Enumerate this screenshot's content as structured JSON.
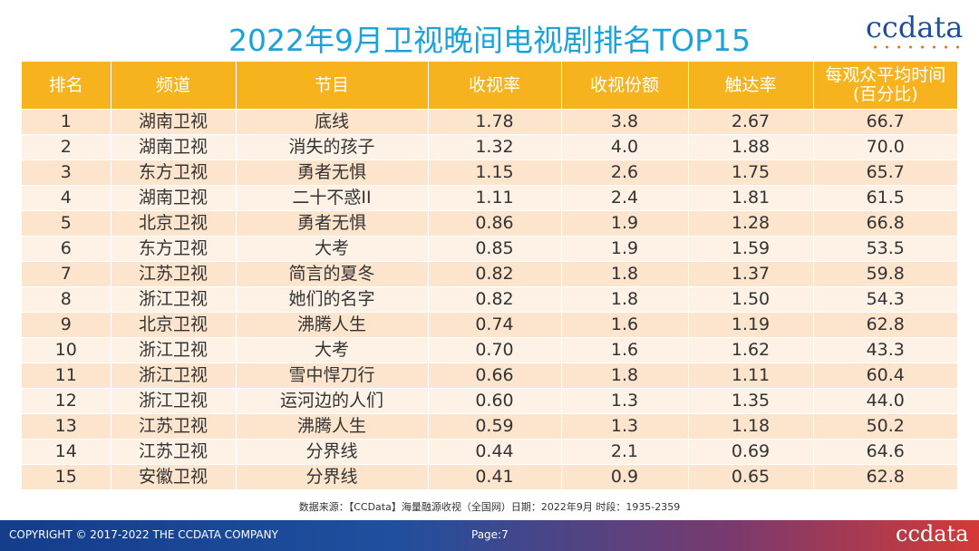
{
  "title": "2022年9月卫视晚间电视剧排名TOP15",
  "logo": "ccdata",
  "headers": [
    "排名",
    "频道",
    "节目",
    "收视率",
    "收视份额",
    "触达率",
    "每观众平均时间\n(百分比)"
  ],
  "rows": [
    [
      "1",
      "湖南卫视",
      "底线",
      "1.78",
      "3.8",
      "2.67",
      "66.7"
    ],
    [
      "2",
      "湖南卫视",
      "消失的孩子",
      "1.32",
      "4.0",
      "1.88",
      "70.0"
    ],
    [
      "3",
      "东方卫视",
      "勇者无惧",
      "1.15",
      "2.6",
      "1.75",
      "65.7"
    ],
    [
      "4",
      "湖南卫视",
      "二十不惑II",
      "1.11",
      "2.4",
      "1.81",
      "61.5"
    ],
    [
      "5",
      "北京卫视",
      "勇者无惧",
      "0.86",
      "1.9",
      "1.28",
      "66.8"
    ],
    [
      "6",
      "东方卫视",
      "大考",
      "0.85",
      "1.9",
      "1.59",
      "53.5"
    ],
    [
      "7",
      "江苏卫视",
      "简言的夏冬",
      "0.82",
      "1.8",
      "1.37",
      "59.8"
    ],
    [
      "8",
      "浙江卫视",
      "她们的名字",
      "0.82",
      "1.8",
      "1.50",
      "54.3"
    ],
    [
      "9",
      "北京卫视",
      "沸腾人生",
      "0.74",
      "1.6",
      "1.19",
      "62.8"
    ],
    [
      "10",
      "浙江卫视",
      "大考",
      "0.70",
      "1.6",
      "1.62",
      "43.3"
    ],
    [
      "11",
      "浙江卫视",
      "雪中悍刀行",
      "0.66",
      "1.8",
      "1.11",
      "60.4"
    ],
    [
      "12",
      "浙江卫视",
      "运河边的人们",
      "0.60",
      "1.3",
      "1.35",
      "44.0"
    ],
    [
      "13",
      "江苏卫视",
      "沸腾人生",
      "0.59",
      "1.3",
      "1.18",
      "50.2"
    ],
    [
      "14",
      "江苏卫视",
      "分界线",
      "0.44",
      "2.1",
      "0.69",
      "64.6"
    ],
    [
      "15",
      "安徽卫视",
      "分界线",
      "0.41",
      "0.9",
      "0.65",
      "62.8"
    ]
  ],
  "source": "数据来源：【CCData】海量融源收视（全国网）日期：2022年9月 时段：1935-2359",
  "footer": {
    "copyright": "COPYRIGHT © 2017-2022 THE CCDATA COMPANY",
    "page": "Page:7",
    "logo": "ccdata"
  },
  "colors": {
    "title": "#1aa3d9",
    "header_bg": "#f6b31d",
    "row_odd": "#fde4cc",
    "row_even": "#fef2e6"
  }
}
